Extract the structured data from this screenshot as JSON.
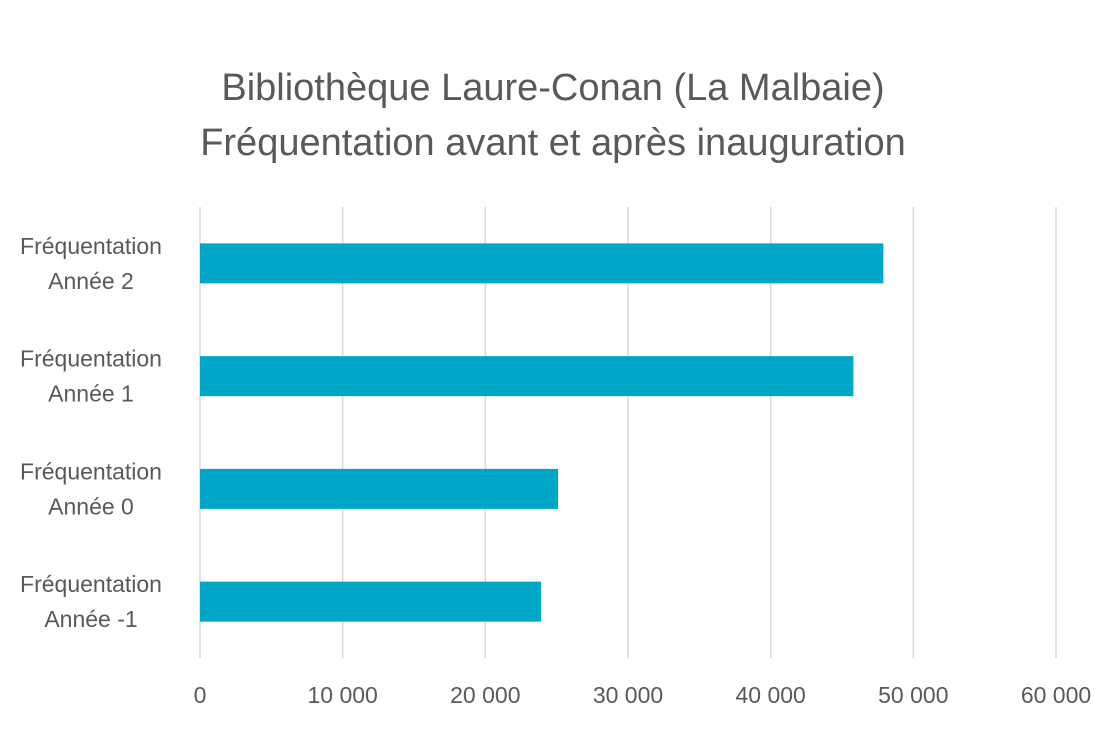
{
  "chart_data": {
    "type": "bar",
    "orientation": "horizontal",
    "title_lines": [
      "Bibliothèque Laure-Conan (La Malbaie)",
      "Fréquentation avant et après inauguration"
    ],
    "categories": [
      [
        "Fréquentation",
        "Année 2"
      ],
      [
        "Fréquentation",
        "Année 1"
      ],
      [
        "Fréquentation",
        "Année 0"
      ],
      [
        "Fréquentation",
        "Année -1"
      ]
    ],
    "values": [
      47900,
      45800,
      25100,
      23900
    ],
    "xlim": [
      0,
      60000
    ],
    "x_ticks": [
      0,
      10000,
      20000,
      30000,
      40000,
      50000,
      60000
    ],
    "x_tick_labels": [
      "0",
      "10 000",
      "20 000",
      "30 000",
      "40 000",
      "50 000",
      "60 000"
    ],
    "grid": "vertical",
    "legend": "none",
    "bar_color": "#00A6C8",
    "grid_color": "#D9D9D9",
    "text_color": "#595959"
  }
}
